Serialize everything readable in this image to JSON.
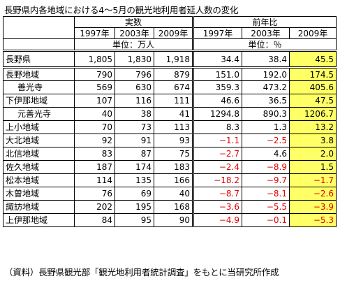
{
  "title": "長野県内各地域における4〜5月の観光地利用者延人数の変化",
  "header": {
    "group_actual": "実数",
    "group_ratio": "前年比",
    "years": [
      "1997年",
      "2003年",
      "2009年"
    ],
    "years_ratio": [
      "1997年",
      "2003年",
      "2009年"
    ],
    "unit_actual": "単位：万人",
    "unit_ratio": "単位：％"
  },
  "rows": [
    {
      "name": "長野県",
      "a1997": "1,805",
      "a2003": "1,830",
      "a2009": "1,918",
      "r1997": "34.4",
      "r2003": "38.4",
      "r2009": "45.5"
    },
    {
      "name": "長野地域",
      "a1997": "790",
      "a2003": "796",
      "a2009": "879",
      "r1997": "151.0",
      "r2003": "192.0",
      "r2009": "174.5"
    },
    {
      "name": "善光寺",
      "a1997": "569",
      "a2003": "630",
      "a2009": "674",
      "r1997": "359.3",
      "r2003": "473.2",
      "r2009": "405.6"
    },
    {
      "name": "下伊那地域",
      "a1997": "107",
      "a2003": "116",
      "a2009": "111",
      "r1997": "46.6",
      "r2003": "36.5",
      "r2009": "47.5"
    },
    {
      "name": "元善光寺",
      "a1997": "40",
      "a2003": "38",
      "a2009": "41",
      "r1997": "1294.8",
      "r2003": "890.3",
      "r2009": "1206.7"
    },
    {
      "name": "上小地域",
      "a1997": "70",
      "a2003": "73",
      "a2009": "113",
      "r1997": "8.3",
      "r2003": "1.3",
      "r2009": "13.2"
    },
    {
      "name": "大北地域",
      "a1997": "92",
      "a2003": "91",
      "a2009": "93",
      "r1997": "−1.1",
      "r2003": "−2.5",
      "r2009": "3.8"
    },
    {
      "name": "北信地域",
      "a1997": "83",
      "a2003": "87",
      "a2009": "75",
      "r1997": "−2.7",
      "r2003": "4.6",
      "r2009": "2.0"
    },
    {
      "name": "佐久地域",
      "a1997": "187",
      "a2003": "174",
      "a2009": "183",
      "r1997": "−2.4",
      "r2003": "−8.9",
      "r2009": "1.5"
    },
    {
      "name": "松本地域",
      "a1997": "114",
      "a2003": "135",
      "a2009": "166",
      "r1997": "−18.2",
      "r2003": "−9.7",
      "r2009": "−1.7"
    },
    {
      "name": "木曽地域",
      "a1997": "76",
      "a2003": "69",
      "a2009": "40",
      "r1997": "−8.7",
      "r2003": "−8.1",
      "r2009": "−2.6"
    },
    {
      "name": "諏訪地域",
      "a1997": "202",
      "a2003": "195",
      "a2009": "168",
      "r1997": "−3.6",
      "r2003": "−5.5",
      "r2009": "−3.9"
    },
    {
      "name": "上伊那地域",
      "a1997": "84",
      "a2003": "95",
      "a2009": "90",
      "r1997": "−4.9",
      "r2003": "−0.1",
      "r2009": "−5.3"
    }
  ],
  "footnote": "（資料）長野県観光部「観光地利用者統計調査」をもとに当研究所作成",
  "colors": {
    "highlight": "#ffff66",
    "negative": "#e00000"
  }
}
